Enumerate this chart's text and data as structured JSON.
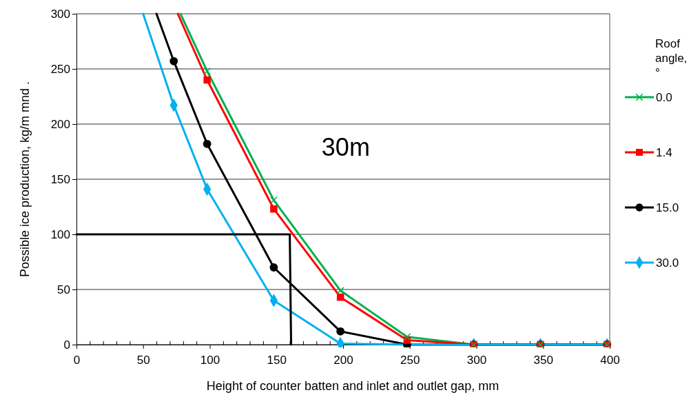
{
  "chart_data": {
    "type": "line",
    "xlabel": "Height of counter batten and inlet and outlet gap, mm",
    "ylabel": "Possible ice production, kg/m mnd .",
    "legend_title": "Roof angle, °",
    "annotations": [
      "30m"
    ],
    "series": [
      {
        "name": "0.0",
        "color": "#00b050",
        "marker": "cross",
        "x": [
          78,
          98,
          148,
          198,
          248,
          298,
          348,
          398
        ],
        "values": [
          300,
          248,
          131,
          49,
          7,
          0,
          0,
          0
        ]
      },
      {
        "name": "1.4",
        "color": "#ff0000",
        "marker": "square",
        "x": [
          76,
          98,
          148,
          198,
          248,
          298,
          348,
          398
        ],
        "values": [
          300,
          240,
          123,
          43,
          4,
          0,
          0,
          0
        ]
      },
      {
        "name": "15.0",
        "color": "#000000",
        "marker": "circle",
        "x": [
          60,
          73,
          98,
          148,
          198,
          248,
          298,
          348,
          398
        ],
        "values": [
          300,
          257,
          182,
          70,
          12,
          0,
          0,
          0,
          0
        ]
      },
      {
        "name": "30.0",
        "color": "#00b0f0",
        "marker": "diamond",
        "x": [
          50,
          73,
          98,
          148,
          198,
          248,
          298,
          348,
          398
        ],
        "values": [
          300,
          217,
          141,
          40,
          1,
          0,
          0,
          0,
          0
        ]
      },
      {
        "color": "#000000",
        "marker": "none",
        "x": [
          0,
          160,
          161
        ],
        "values": [
          100,
          100,
          0
        ]
      }
    ],
    "xlim": [
      0,
      400
    ],
    "xticks": [
      0,
      {
        "value": 10,
        "label": null
      },
      {
        "value": 20,
        "label": null
      },
      {
        "value": 30,
        "label": null
      },
      {
        "value": 40,
        "label": null
      },
      50,
      {
        "value": 60,
        "label": null
      },
      {
        "value": 70,
        "label": null
      },
      {
        "value": 80,
        "label": null
      },
      {
        "value": 90,
        "label": null
      },
      100,
      {
        "value": 110,
        "label": null
      },
      {
        "value": 120,
        "label": null
      },
      {
        "value": 130,
        "label": null
      },
      {
        "value": 140,
        "label": null
      },
      150,
      {
        "value": 160,
        "label": null
      },
      {
        "value": 170,
        "label": null
      },
      {
        "value": 180,
        "label": null
      },
      {
        "value": 190,
        "label": null
      },
      200,
      {
        "value": 210,
        "label": null
      },
      {
        "value": 220,
        "label": null
      },
      {
        "value": 230,
        "label": null
      },
      {
        "value": 240,
        "label": null
      },
      250,
      {
        "value": 260,
        "label": null
      },
      {
        "value": 270,
        "label": null
      },
      {
        "value": 280,
        "label": null
      },
      {
        "value": 290,
        "label": null
      },
      300,
      {
        "value": 310,
        "label": null
      },
      {
        "value": 320,
        "label": null
      },
      {
        "value": 330,
        "label": null
      },
      {
        "value": 340,
        "label": null
      },
      350,
      {
        "value": 360,
        "label": null
      },
      {
        "value": 370,
        "label": null
      },
      {
        "value": 380,
        "label": null
      },
      {
        "value": 390,
        "label": null
      },
      400
    ],
    "ylim": [
      0,
      300
    ],
    "yticks": [
      0,
      50,
      100,
      150,
      200,
      250,
      300
    ],
    "grid": "y",
    "legend": "right"
  }
}
